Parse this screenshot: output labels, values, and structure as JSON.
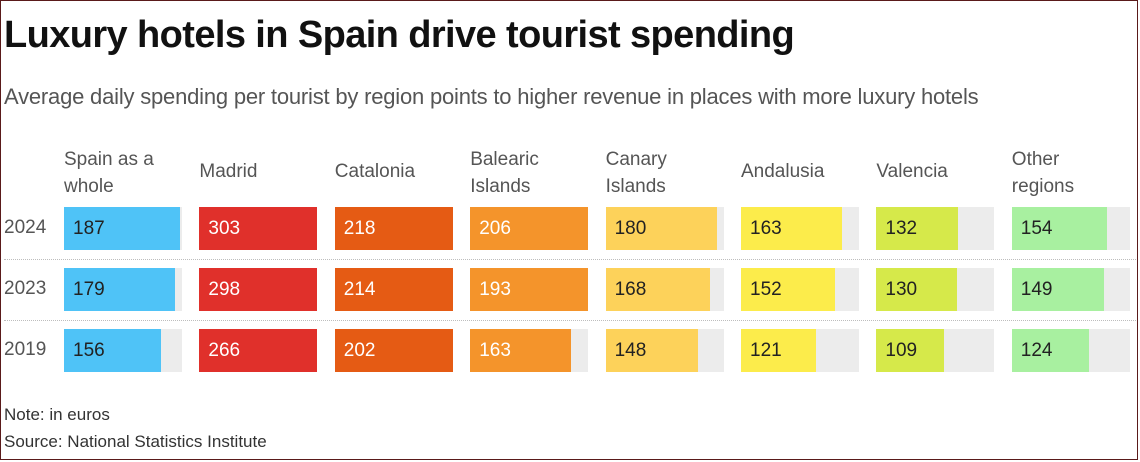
{
  "title": "Luxury hotels in Spain drive tourist spending",
  "subtitle": "Average daily spending per tourist by region points to higher revenue in places with more luxury hotels",
  "note": "Note: in euros",
  "source": "Source: National Statistics Institute",
  "chart_data": {
    "type": "bar",
    "title": "Luxury hotels in Spain drive tourist spending",
    "subtitle": "Average daily spending per tourist by region points to higher revenue in places with more luxury hotels",
    "unit": "euros",
    "categories": [
      "Spain as a whole",
      "Madrid",
      "Catalonia",
      "Balearic Islands",
      "Canary Islands",
      "Andalusia",
      "Valencia",
      "Other regions"
    ],
    "category_labels": [
      [
        "Spain as a",
        "whole"
      ],
      [
        "Madrid"
      ],
      [
        "Catalonia"
      ],
      [
        "Balearic",
        "Islands"
      ],
      [
        "Canary",
        "Islands"
      ],
      [
        "Andalusia"
      ],
      [
        "Valencia"
      ],
      [
        "Other",
        "regions"
      ]
    ],
    "colors": [
      "#4fc3f7",
      "#e0302b",
      "#e55b14",
      "#f4942b",
      "#fdd25a",
      "#fcec4b",
      "#d6e94a",
      "#a8f0a0"
    ],
    "text_colors": [
      "#222222",
      "#ffffff",
      "#ffffff",
      "#ffffff",
      "#222222",
      "#222222",
      "#222222",
      "#222222"
    ],
    "series": [
      {
        "name": "2024",
        "values": [
          187,
          303,
          218,
          206,
          180,
          163,
          132,
          154
        ]
      },
      {
        "name": "2023",
        "values": [
          179,
          298,
          214,
          193,
          168,
          152,
          130,
          149
        ]
      },
      {
        "name": "2019",
        "values": [
          156,
          266,
          202,
          163,
          148,
          121,
          109,
          124
        ]
      }
    ]
  }
}
